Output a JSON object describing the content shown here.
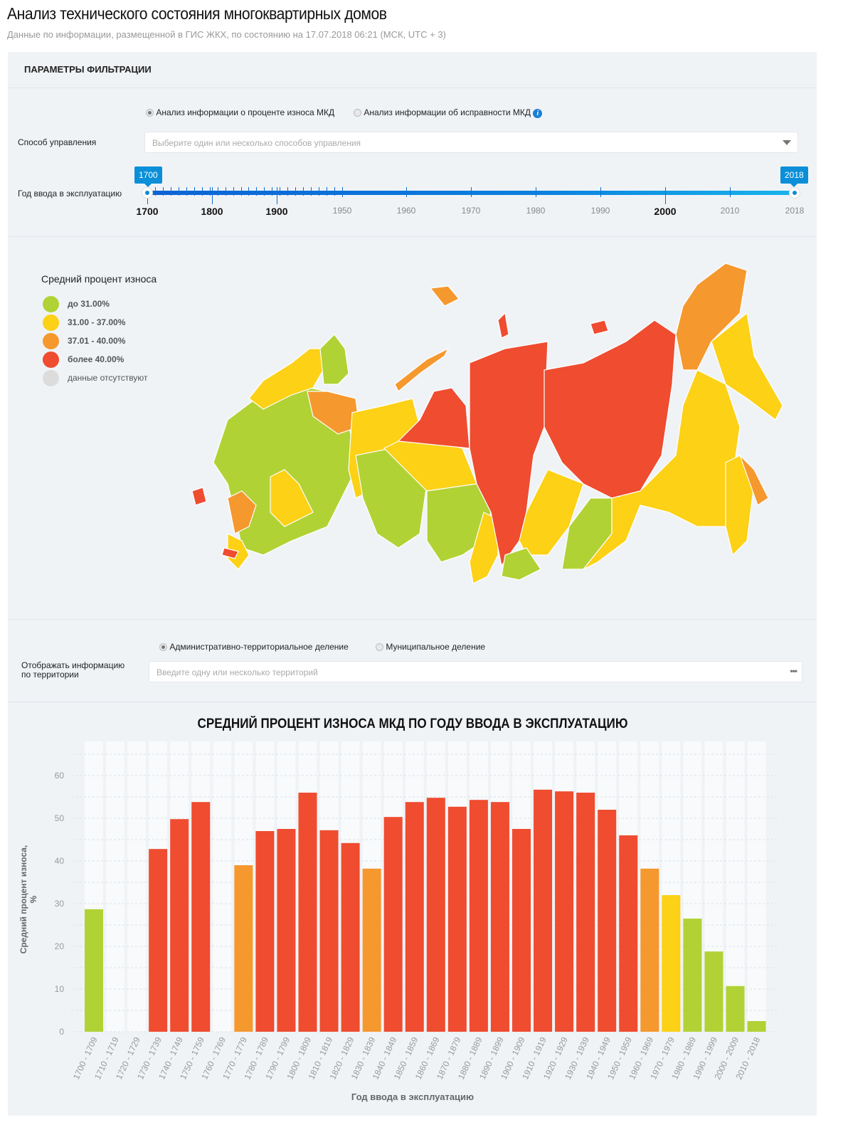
{
  "header": {
    "title": "Анализ технического состояния многоквартирных домов",
    "subtitle": "Данные по информации, размещенной в ГИС ЖКХ, по состоянию на 17.07.2018 06:21 (МСК, UTC + 3)"
  },
  "filters": {
    "heading": "ПАРАМЕТРЫ ФИЛЬТРАЦИИ",
    "mode_options": [
      {
        "label": "Анализ информации о проценте износа МКД",
        "selected": true
      },
      {
        "label": "Анализ информации об исправности МКД",
        "selected": false
      }
    ],
    "management_label": "Способ управления",
    "management_placeholder": "Выберите один или несколько способов управления",
    "year_label": "Год ввода в эксплуатацию",
    "year_from": "1700",
    "year_to": "2018",
    "year_ticks": [
      "1700",
      "1800",
      "1900",
      "1950",
      "1960",
      "1970",
      "1980",
      "1990",
      "2000",
      "2010",
      "2018"
    ]
  },
  "map": {
    "legend_title": "Средний процент износа",
    "legend": [
      {
        "label": "до 31.00%",
        "color": "#b1d235"
      },
      {
        "label": "31.00 - 37.00%",
        "color": "#fcd116"
      },
      {
        "label": "37.01 - 40.00%",
        "color": "#f5982e"
      },
      {
        "label": "более 40.00%",
        "color": "#ef4c30"
      },
      {
        "label": "данные отсутствуют",
        "color": "#dcdcdc"
      }
    ]
  },
  "territory": {
    "options": [
      {
        "label": "Административно-территориальное деление",
        "selected": true
      },
      {
        "label": "Муниципальное деление",
        "selected": false
      }
    ],
    "label_line1": "Отображать информацию",
    "label_line2": "по территории",
    "placeholder": "Введите одну или несколько территорий"
  },
  "chart_data": {
    "type": "bar",
    "title": "СРЕДНИЙ ПРОЦЕНТ ИЗНОСА МКД ПО ГОДУ ВВОДА В ЭКСПЛУАТАЦИЮ",
    "xlabel": "Год ввода в эксплуатацию",
    "ylabel": "Средний процент износа, %",
    "ylim": [
      0,
      65
    ],
    "yticks": [
      0,
      10,
      20,
      30,
      40,
      50,
      60
    ],
    "grid": true,
    "categories": [
      "1700 - 1709",
      "1710 - 1719",
      "1720 - 1729",
      "1730 - 1739",
      "1740 - 1749",
      "1750 - 1759",
      "1760 - 1769",
      "1770 - 1779",
      "1780 - 1789",
      "1790 - 1799",
      "1800 - 1809",
      "1810 - 1819",
      "1820 - 1829",
      "1830 - 1839",
      "1840 - 1849",
      "1850 - 1859",
      "1860 - 1869",
      "1870 - 1879",
      "1880 - 1889",
      "1890 - 1899",
      "1900 - 1909",
      "1910 - 1919",
      "1920 - 1929",
      "1930 - 1939",
      "1940 - 1949",
      "1950 - 1959",
      "1960 - 1969",
      "1970 - 1979",
      "1980 - 1989",
      "1990 - 1999",
      "2000 - 2009",
      "2010 - 2018"
    ],
    "values": [
      28.7,
      null,
      null,
      42.8,
      49.8,
      53.8,
      null,
      39.0,
      47.0,
      47.5,
      56.0,
      47.2,
      44.2,
      38.2,
      50.3,
      53.8,
      54.8,
      52.7,
      54.3,
      53.8,
      47.5,
      56.7,
      56.3,
      56.0,
      52.0,
      46.0,
      38.2,
      32.0,
      26.5,
      18.8,
      10.7,
      2.5
    ]
  }
}
